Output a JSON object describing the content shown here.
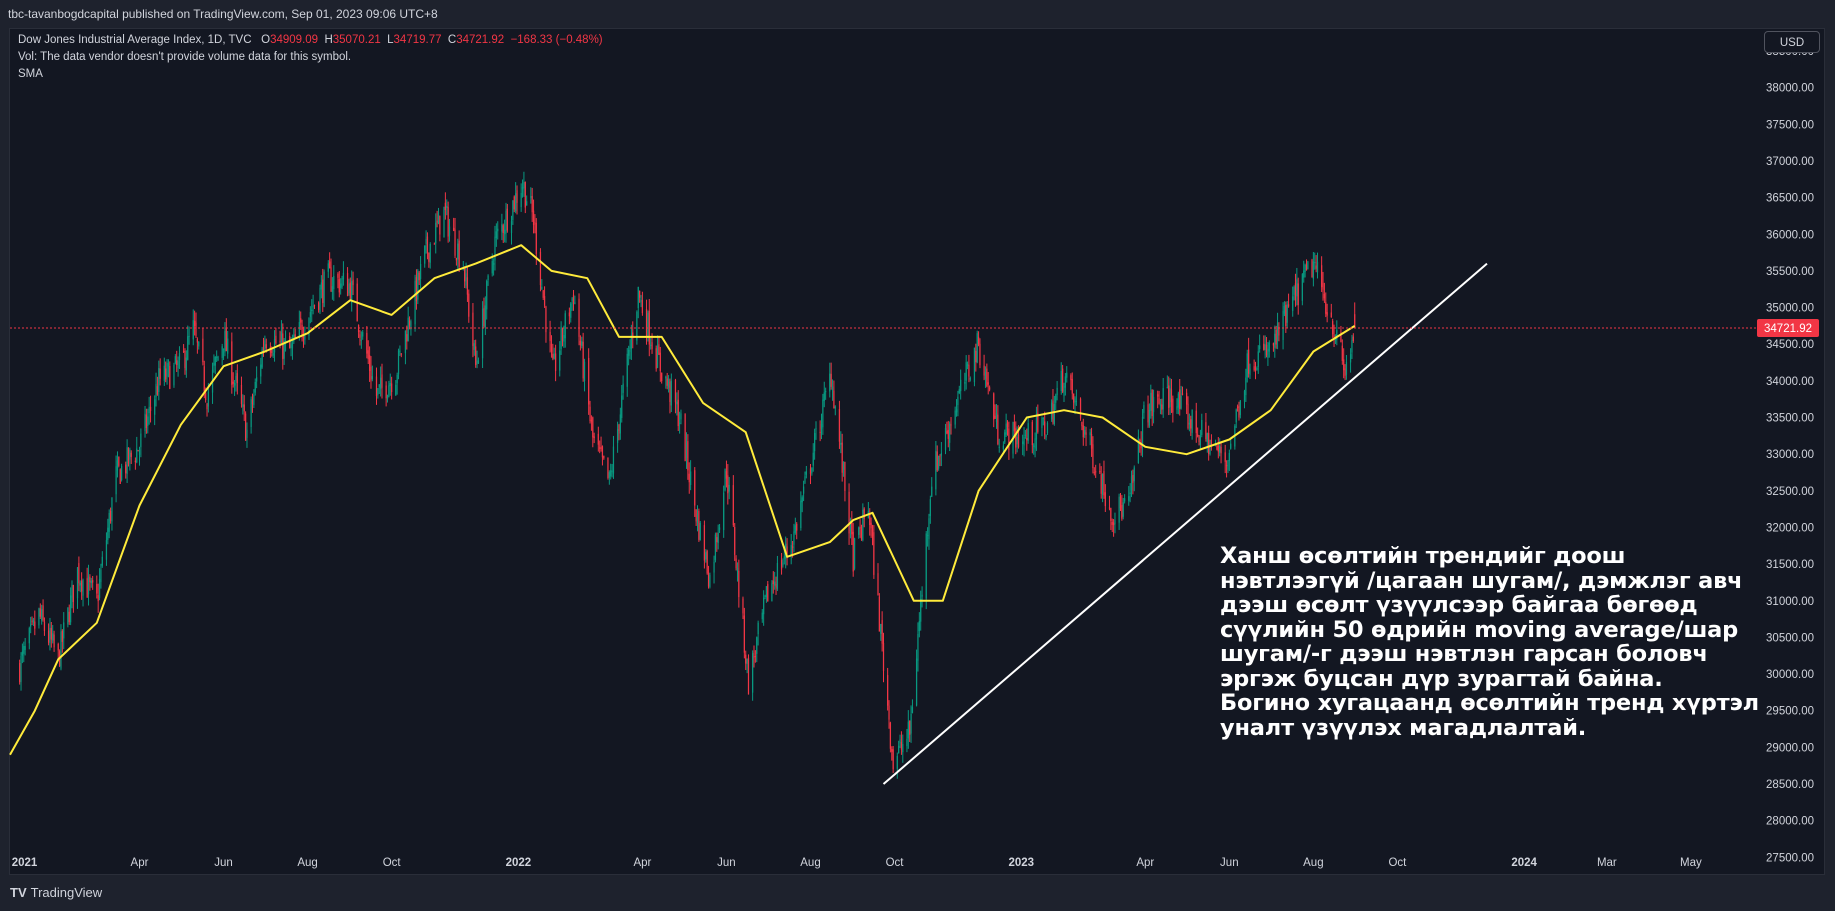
{
  "header": {
    "published": "tbc-tavanbogdcapital published on TradingView.com, Sep 01, 2023 09:06 UTC+8"
  },
  "legend": {
    "symbol": "Dow Jones Industrial Average Index, 1D, TVC",
    "open_label": "O",
    "open": "34909.09",
    "high_label": "H",
    "high": "35070.21",
    "low_label": "L",
    "low": "34719.77",
    "close_label": "C",
    "close": "34721.92",
    "change": "−168.33 (−0.48%)",
    "vol_note": "Vol: The data vendor doesn't provide volume data for this symbol.",
    "indicator": "SMA"
  },
  "currency": "USD",
  "annotation": "Ханш өсөлтийн трендийг доош нэвтлээгүй /цагаан шугам/, дэмжлэг авч дээш өсөлт үзүүлсээр байгаа бөгөөд сүүлийн 50 өдрийн moving average/шар шугам/-г дээш нэвтлэн гарсан боловч эргэж буцсан дүр зурагтай байна. Богино хугацаанд өсөлтийн тренд хүртэл уналт үзүүлэх магадлалтай.",
  "footer": {
    "brand_logo": "TV",
    "brand": "TradingView"
  },
  "colors": {
    "up": "#089981",
    "down": "#f23645",
    "sma": "#ffeb3b",
    "trendline": "#ffffff",
    "last_price": "#f23645"
  },
  "chart_data": {
    "type": "line",
    "symbol": "Dow Jones Industrial Average Index",
    "interval": "1D",
    "y_axis_side": "right",
    "ylim": [
      27300,
      38800
    ],
    "xlim": [
      "2020-12-28",
      "2024-06-10"
    ],
    "y_ticks": [
      "27500.00",
      "28000.00",
      "28500.00",
      "29000.00",
      "29500.00",
      "30000.00",
      "30500.00",
      "31000.00",
      "31500.00",
      "32000.00",
      "32500.00",
      "33000.00",
      "33500.00",
      "34000.00",
      "34500.00",
      "35000.00",
      "35500.00",
      "36000.00",
      "36500.00",
      "37000.00",
      "37500.00",
      "38000.00",
      "38500.00"
    ],
    "x_ticks": [
      {
        "label": "2021",
        "date": "2021-01-01"
      },
      {
        "label": "Apr",
        "date": "2021-04-01"
      },
      {
        "label": "Jun",
        "date": "2021-06-01"
      },
      {
        "label": "Aug",
        "date": "2021-08-01"
      },
      {
        "label": "Oct",
        "date": "2021-10-01"
      },
      {
        "label": "2022",
        "date": "2022-01-01"
      },
      {
        "label": "Apr",
        "date": "2022-04-01"
      },
      {
        "label": "Jun",
        "date": "2022-06-01"
      },
      {
        "label": "Aug",
        "date": "2022-08-01"
      },
      {
        "label": "Oct",
        "date": "2022-10-01"
      },
      {
        "label": "2023",
        "date": "2023-01-01"
      },
      {
        "label": "Apr",
        "date": "2023-04-01"
      },
      {
        "label": "Jun",
        "date": "2023-06-01"
      },
      {
        "label": "Aug",
        "date": "2023-08-01"
      },
      {
        "label": "Oct",
        "date": "2023-10-01"
      },
      {
        "label": "2024",
        "date": "2024-01-01"
      },
      {
        "label": "Mar",
        "date": "2024-03-01"
      },
      {
        "label": "May",
        "date": "2024-05-01"
      }
    ],
    "last_price": "34721.92",
    "series": [
      {
        "type": "candlestick",
        "values": [
          [
            "2021-01-04",
            30100
          ],
          [
            "2021-01-18",
            30800
          ],
          [
            "2021-02-01",
            30200
          ],
          [
            "2021-02-15",
            31400
          ],
          [
            "2021-03-01",
            31000
          ],
          [
            "2021-03-15",
            32700
          ],
          [
            "2021-04-01",
            33100
          ],
          [
            "2021-04-15",
            34000
          ],
          [
            "2021-05-01",
            34200
          ],
          [
            "2021-05-10",
            34700
          ],
          [
            "2021-05-20",
            33800
          ],
          [
            "2021-06-01",
            34600
          ],
          [
            "2021-06-18",
            33300
          ],
          [
            "2021-07-01",
            34600
          ],
          [
            "2021-07-20",
            34400
          ],
          [
            "2021-08-01",
            34900
          ],
          [
            "2021-08-16",
            35400
          ],
          [
            "2021-09-01",
            35300
          ],
          [
            "2021-09-20",
            33800
          ],
          [
            "2021-10-04",
            34100
          ],
          [
            "2021-10-25",
            35700
          ],
          [
            "2021-11-08",
            36300
          ],
          [
            "2021-11-22",
            35600
          ],
          [
            "2021-12-01",
            34200
          ],
          [
            "2021-12-15",
            35900
          ],
          [
            "2022-01-04",
            36700
          ],
          [
            "2022-01-12",
            36200
          ],
          [
            "2022-01-26",
            34100
          ],
          [
            "2022-02-10",
            35200
          ],
          [
            "2022-02-24",
            33200
          ],
          [
            "2022-03-08",
            32600
          ],
          [
            "2022-03-29",
            35200
          ],
          [
            "2022-04-12",
            34300
          ],
          [
            "2022-04-28",
            33500
          ],
          [
            "2022-05-10",
            32200
          ],
          [
            "2022-05-20",
            31300
          ],
          [
            "2022-06-01",
            32800
          ],
          [
            "2022-06-17",
            29900
          ],
          [
            "2022-07-01",
            31100
          ],
          [
            "2022-07-20",
            31900
          ],
          [
            "2022-08-16",
            34100
          ],
          [
            "2022-09-01",
            31600
          ],
          [
            "2022-09-12",
            32300
          ],
          [
            "2022-09-30",
            28800
          ],
          [
            "2022-10-12",
            29200
          ],
          [
            "2022-10-28",
            32700
          ],
          [
            "2022-11-15",
            33700
          ],
          [
            "2022-12-01",
            34500
          ],
          [
            "2022-12-15",
            33300
          ],
          [
            "2023-01-03",
            33200
          ],
          [
            "2023-01-20",
            33400
          ],
          [
            "2023-02-01",
            34100
          ],
          [
            "2023-02-20",
            33100
          ],
          [
            "2023-03-08",
            32200
          ],
          [
            "2023-03-20",
            32300
          ],
          [
            "2023-04-01",
            33600
          ],
          [
            "2023-04-20",
            33800
          ],
          [
            "2023-05-10",
            33300
          ],
          [
            "2023-05-30",
            32900
          ],
          [
            "2023-06-15",
            34300
          ],
          [
            "2023-07-01",
            34400
          ],
          [
            "2023-07-20",
            35200
          ],
          [
            "2023-08-01",
            35600
          ],
          [
            "2023-08-15",
            34800
          ],
          [
            "2023-08-24",
            34100
          ],
          [
            "2023-08-31",
            34721.92
          ]
        ]
      },
      {
        "type": "line",
        "values": [
          [
            "2020-12-28",
            28900
          ],
          [
            "2021-01-15",
            29500
          ],
          [
            "2021-02-01",
            30200
          ],
          [
            "2021-03-01",
            30700
          ],
          [
            "2021-04-01",
            32300
          ],
          [
            "2021-05-01",
            33400
          ],
          [
            "2021-06-01",
            34200
          ],
          [
            "2021-07-01",
            34400
          ],
          [
            "2021-08-01",
            34650
          ],
          [
            "2021-09-01",
            35100
          ],
          [
            "2021-10-01",
            34900
          ],
          [
            "2021-11-01",
            35400
          ],
          [
            "2021-12-01",
            35600
          ],
          [
            "2022-01-03",
            35850
          ],
          [
            "2022-01-25",
            35500
          ],
          [
            "2022-02-20",
            35400
          ],
          [
            "2022-03-15",
            34600
          ],
          [
            "2022-04-15",
            34600
          ],
          [
            "2022-05-15",
            33700
          ],
          [
            "2022-06-15",
            33300
          ],
          [
            "2022-07-15",
            31600
          ],
          [
            "2022-08-15",
            31800
          ],
          [
            "2022-09-01",
            32100
          ],
          [
            "2022-09-15",
            32200
          ],
          [
            "2022-10-15",
            31000
          ],
          [
            "2022-11-05",
            31000
          ],
          [
            "2022-12-01",
            32500
          ],
          [
            "2023-01-05",
            33500
          ],
          [
            "2023-02-01",
            33600
          ],
          [
            "2023-03-01",
            33500
          ],
          [
            "2023-04-01",
            33100
          ],
          [
            "2023-05-01",
            33000
          ],
          [
            "2023-06-01",
            33200
          ],
          [
            "2023-07-01",
            33600
          ],
          [
            "2023-08-01",
            34400
          ],
          [
            "2023-08-31",
            34750
          ]
        ]
      },
      {
        "type": "trendline",
        "values": [
          [
            "2022-09-23",
            28500
          ],
          [
            "2023-12-05",
            35600
          ]
        ]
      }
    ]
  }
}
